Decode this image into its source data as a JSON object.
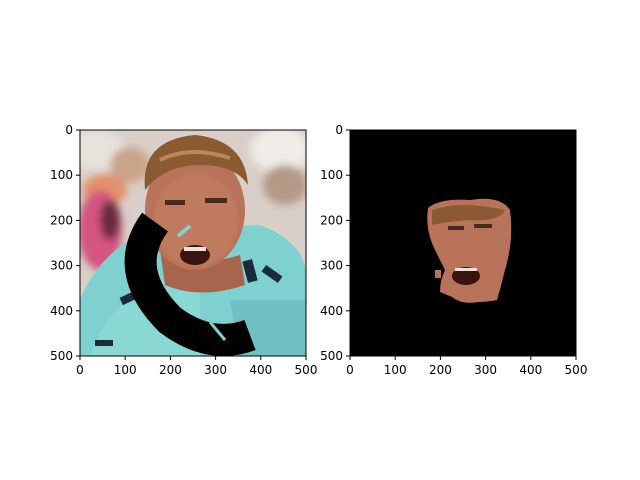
{
  "panels": [
    {
      "name": "left-panel",
      "image": "cyclist-face-photo-with-occlusion",
      "xticks": [
        "0",
        "100",
        "200",
        "300",
        "400",
        "500"
      ],
      "yticks": [
        "0",
        "100",
        "200",
        "300",
        "400",
        "500"
      ]
    },
    {
      "name": "right-panel",
      "image": "segmented-face-mask-on-black",
      "xticks": [
        "0",
        "100",
        "200",
        "300",
        "400",
        "500"
      ],
      "yticks": [
        "0",
        "100",
        "200",
        "300",
        "400",
        "500"
      ]
    }
  ],
  "colors": {
    "background": "#ffffff",
    "mask_background": "#000000",
    "jersey": "#7fd1cf",
    "skin": "#b9735a",
    "hair": "#8a5a32"
  }
}
